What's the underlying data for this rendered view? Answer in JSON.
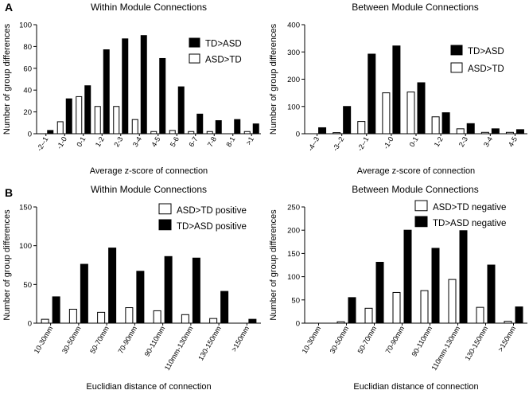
{
  "panel_labels": {
    "a": "A",
    "b": "B"
  },
  "colors": {
    "td_asd": "#000000",
    "asd_td": "#ffffff",
    "stroke": "#000000"
  },
  "chart_data": [
    {
      "type": "bar",
      "title": "Within Module Connections",
      "xlabel": "Average z-score of connection",
      "ylabel": "Number of group differences",
      "ylim": [
        0,
        100
      ],
      "yticks": [
        0,
        20,
        40,
        60,
        80,
        100
      ],
      "grid": false,
      "legend_position": "top-right",
      "categories": [
        "-2--1",
        "-1-0",
        "0-1",
        "1-2",
        "2-3",
        "3-4",
        "4-5",
        "5-6",
        "6-7",
        "7-8",
        "8-1",
        ">1"
      ],
      "series": [
        {
          "name": "TD>ASD",
          "color": "#000000",
          "values": [
            3,
            32,
            44,
            77,
            87,
            90,
            69,
            43,
            18,
            12,
            13,
            9
          ]
        },
        {
          "name": "ASD>TD",
          "color": "#ffffff",
          "values": [
            0,
            11,
            34,
            25,
            25,
            13,
            2,
            3,
            2,
            2,
            0,
            2
          ]
        }
      ]
    },
    {
      "type": "bar",
      "title": "Between Module Connections",
      "xlabel": "Average z-score of connection",
      "ylabel": "Number of group differences",
      "ylim": [
        0,
        400
      ],
      "yticks": [
        0,
        100,
        200,
        300,
        400
      ],
      "grid": false,
      "legend_position": "top-right",
      "categories": [
        "-4--3",
        "-3--2",
        "-2--1",
        "-1-0",
        "0-1",
        "1-2",
        "2-3",
        "3-4",
        "4-5"
      ],
      "series": [
        {
          "name": "TD>ASD",
          "color": "#000000",
          "values": [
            22,
            100,
            292,
            322,
            187,
            77,
            37,
            18,
            15
          ]
        },
        {
          "name": "ASD>TD",
          "color": "#ffffff",
          "values": [
            0,
            4,
            45,
            150,
            153,
            62,
            18,
            5,
            5
          ]
        }
      ]
    },
    {
      "type": "bar",
      "title": "Within Module Connections",
      "xlabel": "Euclidian distance of connection",
      "ylabel": "Number of group differences",
      "ylim": [
        0,
        150
      ],
      "yticks": [
        0,
        50,
        100,
        150
      ],
      "grid": false,
      "legend_position": "top-right",
      "categories": [
        "10-30mm",
        "30-50mm",
        "50-70mm",
        "70-90mm",
        "90-110mm",
        "110mm-130mm",
        "130-150mm",
        ">150mm"
      ],
      "series": [
        {
          "name": "ASD>TD positive",
          "color": "#ffffff",
          "values": [
            5,
            18,
            14,
            20,
            16,
            11,
            6,
            0
          ]
        },
        {
          "name": "TD>ASD positive",
          "color": "#000000",
          "values": [
            34,
            76,
            97,
            67,
            86,
            84,
            41,
            5
          ]
        }
      ]
    },
    {
      "type": "bar",
      "title": "Between Module Connections",
      "xlabel": "Euclidian distance of connection",
      "ylabel": "Number of group differences",
      "ylim": [
        0,
        250
      ],
      "yticks": [
        0,
        50,
        100,
        150,
        200,
        250
      ],
      "grid": false,
      "legend_position": "top-right",
      "categories": [
        "10-30mm",
        "30-50mm",
        "50-70mm",
        "70-90mm",
        "90-110mm",
        "110mm-130mm",
        "130-150mm",
        ">150mm"
      ],
      "series": [
        {
          "name": "ASD>TD negative",
          "color": "#ffffff",
          "values": [
            0,
            3,
            32,
            66,
            70,
            94,
            34,
            4
          ]
        },
        {
          "name": "TD>ASD negative",
          "color": "#000000",
          "values": [
            0,
            55,
            131,
            200,
            161,
            199,
            125,
            35
          ]
        }
      ]
    }
  ]
}
